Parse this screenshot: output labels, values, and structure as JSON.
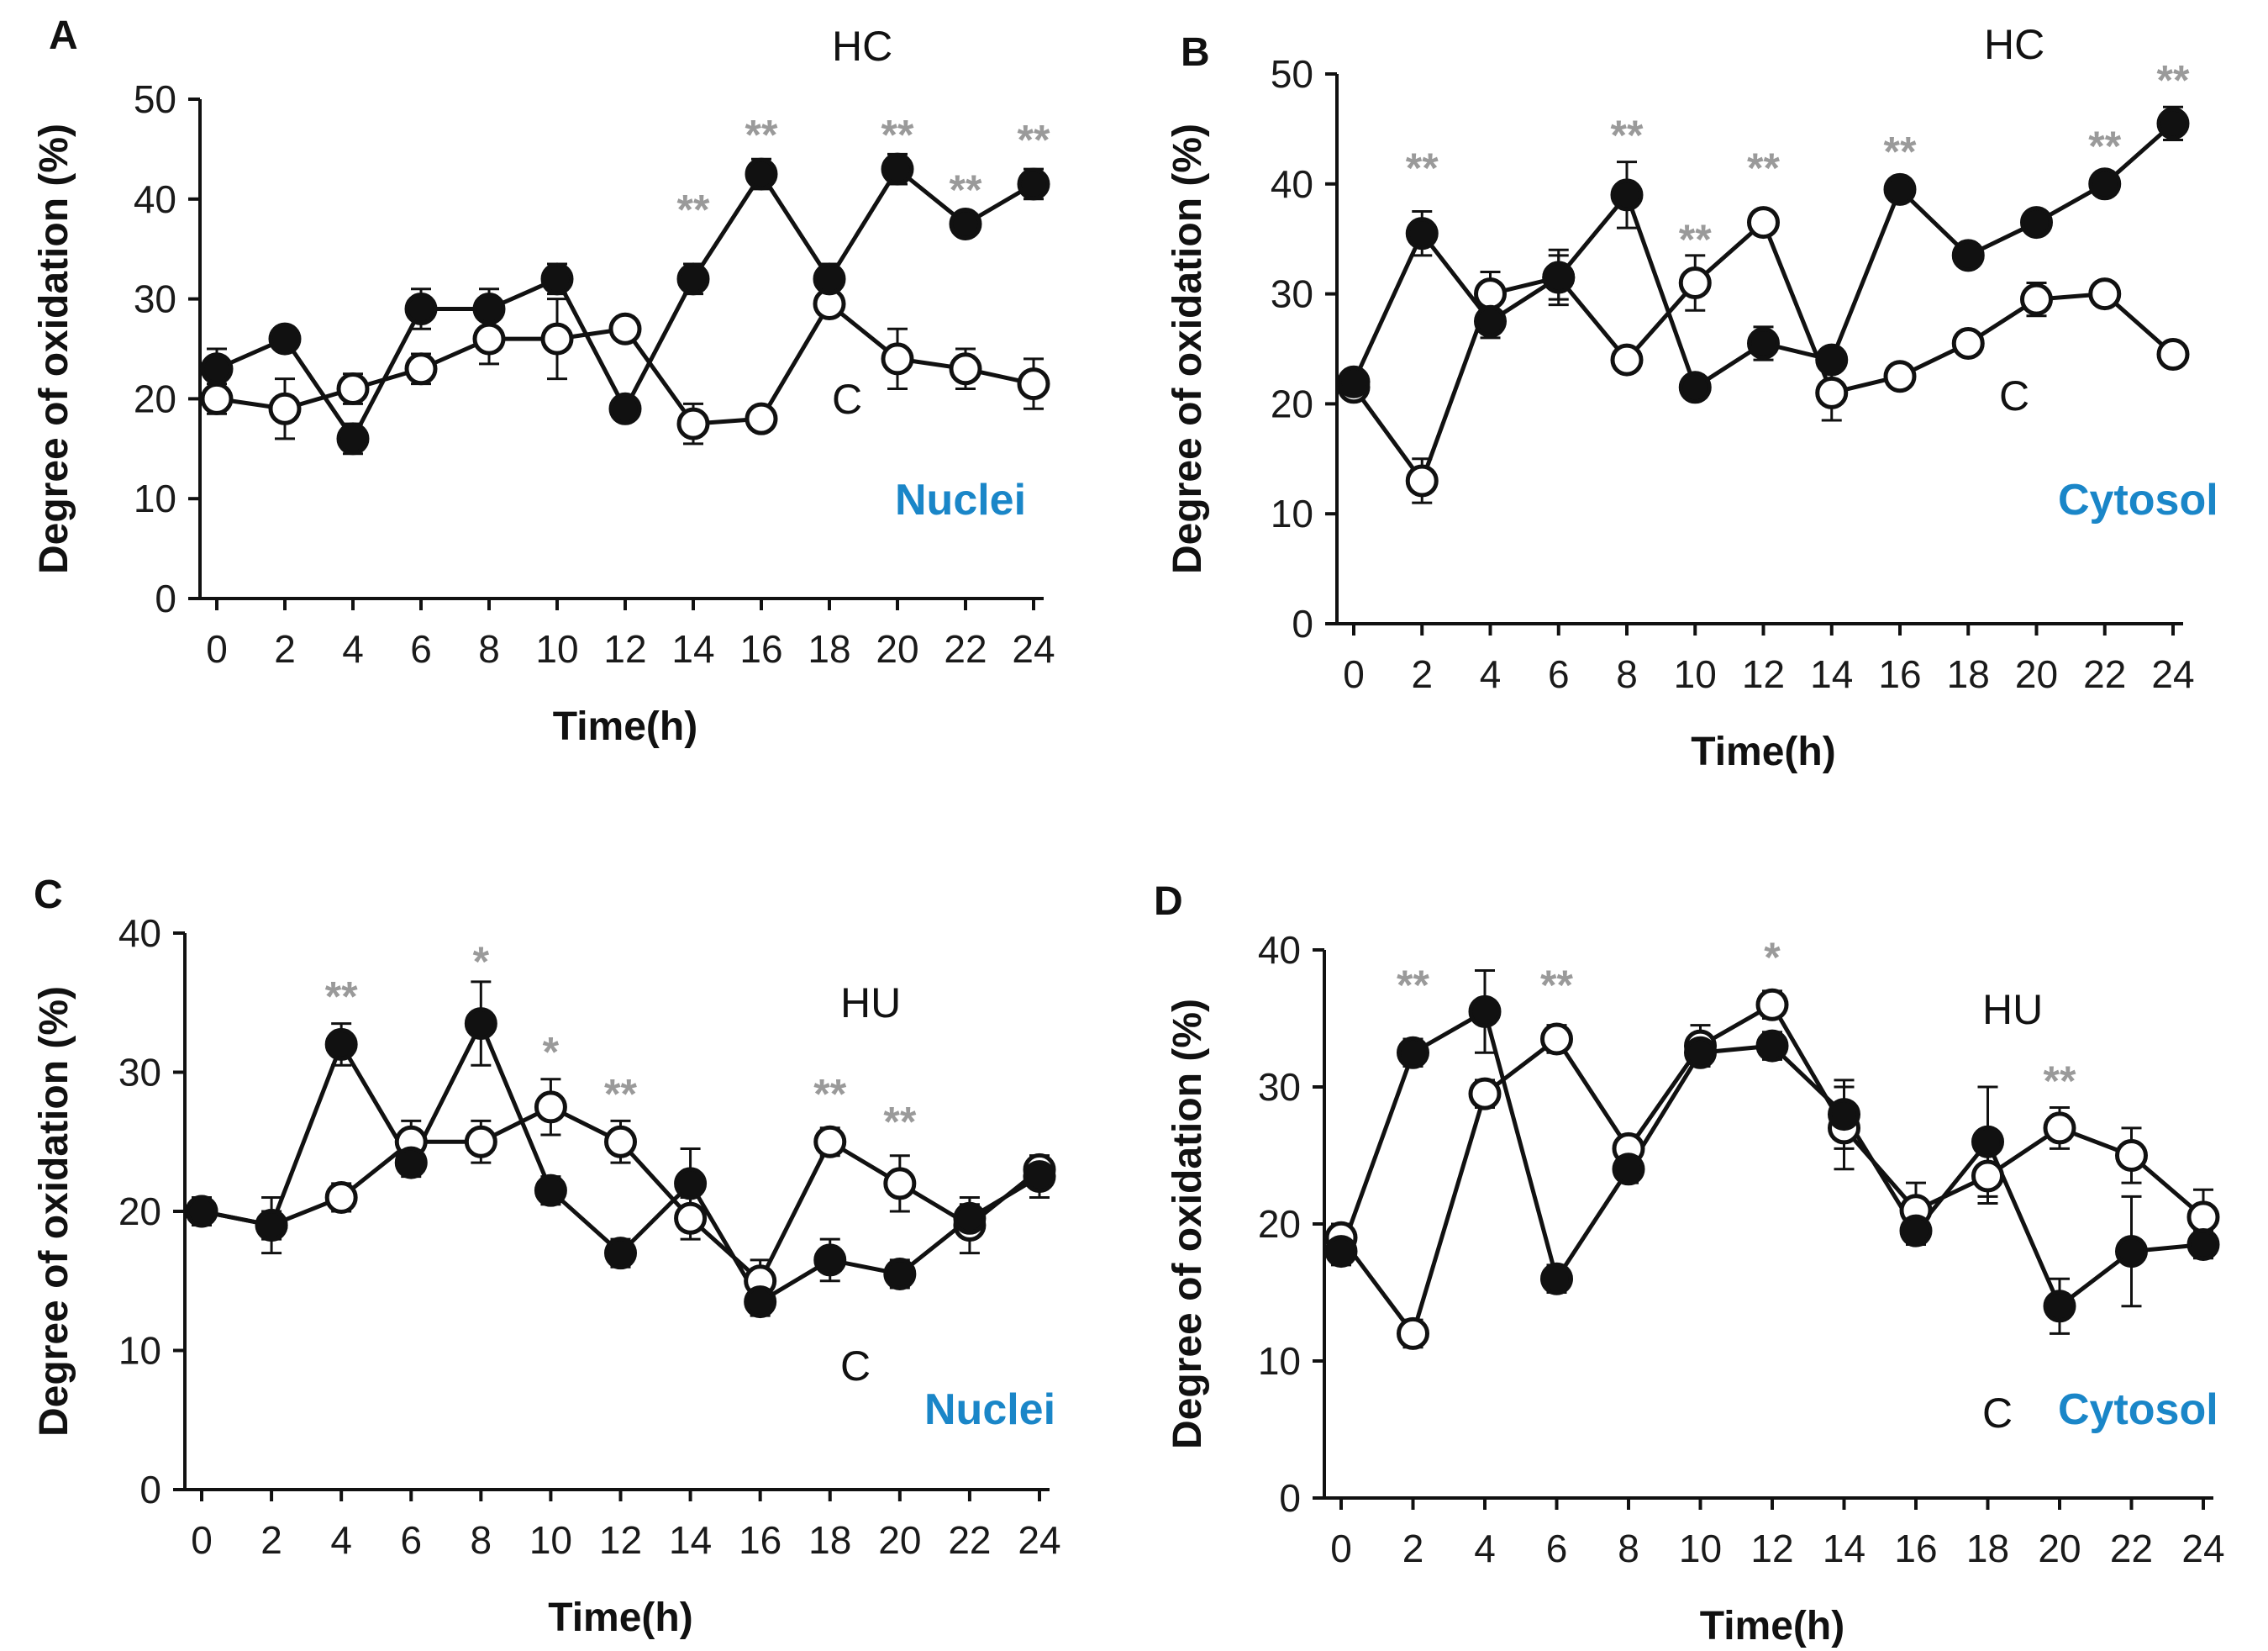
{
  "colors": {
    "axis": "#111111",
    "line": "#111111",
    "significance": "#9a9a9a",
    "region_label": "#1a86c8",
    "open_marker_fill": "#ffffff",
    "filled_marker": "#111111"
  },
  "chart_data": [
    {
      "panel": "A",
      "type": "line",
      "title": "Nuclei",
      "treatment": "HC",
      "control": "C",
      "xlabel": "Time(h)",
      "ylabel": "Degree of oxidation (%)",
      "x": [
        0,
        2,
        4,
        6,
        8,
        10,
        12,
        14,
        16,
        18,
        20,
        22,
        24
      ],
      "xticks": [
        "0",
        "2",
        "4",
        "6",
        "8",
        "10",
        "12",
        "14",
        "16",
        "18",
        "20",
        "22",
        "24"
      ],
      "ylim": [
        0,
        50
      ],
      "yticks": [
        "0",
        "10",
        "20",
        "30",
        "40",
        "50"
      ],
      "series": [
        {
          "name": "HC",
          "marker": "filled",
          "values": [
            23,
            26,
            16,
            29,
            29,
            32,
            19,
            32,
            42.5,
            32,
            43,
            37.5,
            41.5
          ],
          "errors": [
            2,
            1,
            1.5,
            2,
            2,
            1.5,
            1,
            1.5,
            1.5,
            1.5,
            1.5,
            1,
            1.5
          ]
        },
        {
          "name": "C",
          "marker": "open",
          "values": [
            20,
            19,
            21,
            23,
            26,
            26,
            27,
            17.5,
            18,
            29.5,
            24,
            23,
            21.5
          ],
          "errors": [
            1.5,
            3,
            1.5,
            1.5,
            2.5,
            4,
            1,
            2,
            0.5,
            1,
            3,
            2,
            2.5
          ]
        }
      ],
      "annotations": [
        {
          "x": 14,
          "y": 39,
          "text": "**"
        },
        {
          "x": 16,
          "y": 46.5,
          "text": "**"
        },
        {
          "x": 20,
          "y": 46.5,
          "text": "**"
        },
        {
          "x": 22,
          "y": 41,
          "text": "**"
        },
        {
          "x": 24,
          "y": 46,
          "text": "**"
        }
      ]
    },
    {
      "panel": "B",
      "type": "line",
      "title": "Cytosol",
      "treatment": "HC",
      "control": "C",
      "xlabel": "Time(h)",
      "ylabel": "Degree of oxidation (%)",
      "x": [
        0,
        2,
        4,
        6,
        8,
        10,
        12,
        14,
        16,
        18,
        20,
        22,
        24
      ],
      "xticks": [
        "0",
        "2",
        "4",
        "6",
        "8",
        "10",
        "12",
        "14",
        "16",
        "18",
        "20",
        "22",
        "24"
      ],
      "ylim": [
        0,
        50
      ],
      "yticks": [
        "0",
        "10",
        "20",
        "30",
        "40",
        "50"
      ],
      "series": [
        {
          "name": "HC",
          "marker": "filled",
          "values": [
            22,
            35.5,
            27.5,
            31.5,
            39,
            21.5,
            25.5,
            24,
            39.5,
            33.5,
            36.5,
            40,
            45.5
          ],
          "errors": [
            1,
            2,
            1.5,
            2,
            3,
            1,
            1.5,
            1,
            1,
            1,
            1,
            1,
            1.5
          ]
        },
        {
          "name": "C",
          "marker": "open",
          "values": [
            21.5,
            13,
            30,
            31.5,
            24,
            31,
            36.5,
            21,
            22.5,
            25.5,
            29.5,
            30,
            24.5
          ],
          "errors": [
            1,
            2,
            2,
            2.5,
            1,
            2.5,
            1,
            2.5,
            1,
            1,
            1.5,
            1,
            1
          ]
        }
      ],
      "annotations": [
        {
          "x": 2,
          "y": 41.5,
          "text": "**"
        },
        {
          "x": 8,
          "y": 44.5,
          "text": "**"
        },
        {
          "x": 10,
          "y": 35,
          "text": "**"
        },
        {
          "x": 12,
          "y": 41.5,
          "text": "**"
        },
        {
          "x": 16,
          "y": 43,
          "text": "**"
        },
        {
          "x": 22,
          "y": 43.5,
          "text": "**"
        },
        {
          "x": 24,
          "y": 49.5,
          "text": "**"
        }
      ]
    },
    {
      "panel": "C",
      "type": "line",
      "title": "Nuclei",
      "treatment": "HU",
      "control": "C",
      "xlabel": "Time(h)",
      "ylabel": "Degree of oxidation (%)",
      "x": [
        0,
        2,
        4,
        6,
        8,
        10,
        12,
        14,
        16,
        18,
        20,
        22,
        24
      ],
      "xticks": [
        "0",
        "2",
        "4",
        "6",
        "8",
        "10",
        "12",
        "14",
        "16",
        "18",
        "20",
        "22",
        "24"
      ],
      "ylim": [
        0,
        40
      ],
      "yticks": [
        "0",
        "10",
        "20",
        "30",
        "40"
      ],
      "series": [
        {
          "name": "HU",
          "marker": "filled",
          "values": [
            20,
            19,
            32,
            23.5,
            33.5,
            21.5,
            17,
            22,
            13.5,
            16.5,
            15.5,
            19.5,
            22.5
          ],
          "errors": [
            1,
            2,
            1.5,
            1,
            3,
            1,
            1,
            2.5,
            1,
            1.5,
            1,
            1,
            1.5
          ]
        },
        {
          "name": "C",
          "marker": "open",
          "values": [
            20,
            19,
            21,
            25,
            25,
            27.5,
            25,
            19.5,
            15,
            25,
            22,
            19,
            23
          ],
          "errors": [
            1,
            1,
            1,
            1.5,
            1.5,
            2,
            1.5,
            1.5,
            1.5,
            1,
            2,
            2,
            1
          ]
        }
      ],
      "annotations": [
        {
          "x": 4,
          "y": 35.5,
          "text": "**"
        },
        {
          "x": 8,
          "y": 38,
          "text": "*"
        },
        {
          "x": 10,
          "y": 31.5,
          "text": "*"
        },
        {
          "x": 12,
          "y": 28.5,
          "text": "**"
        },
        {
          "x": 18,
          "y": 28.5,
          "text": "**"
        },
        {
          "x": 20,
          "y": 26.5,
          "text": "**"
        }
      ]
    },
    {
      "panel": "D",
      "type": "line",
      "title": "Cytosol",
      "treatment": "HU",
      "control": "C",
      "xlabel": "Time(h)",
      "ylabel": "Degree of oxidation (%)",
      "x": [
        0,
        2,
        4,
        6,
        8,
        10,
        12,
        14,
        16,
        18,
        20,
        22,
        24
      ],
      "xticks": [
        "0",
        "2",
        "4",
        "6",
        "8",
        "10",
        "12",
        "14",
        "16",
        "18",
        "20",
        "22",
        "24"
      ],
      "ylim": [
        0,
        40
      ],
      "yticks": [
        "0",
        "10",
        "20",
        "30",
        "40"
      ],
      "series": [
        {
          "name": "HU",
          "marker": "filled",
          "values": [
            18,
            32.5,
            35.5,
            16,
            24,
            32.5,
            33,
            28,
            19.5,
            26,
            14,
            18,
            18.5
          ],
          "errors": [
            1,
            1,
            3,
            1,
            1,
            1,
            1,
            2.5,
            1,
            4,
            2,
            4,
            1
          ]
        },
        {
          "name": "C",
          "marker": "open",
          "values": [
            19,
            12,
            29.5,
            33.5,
            25.5,
            33,
            36,
            27,
            21,
            23.5,
            27,
            25,
            20.5
          ],
          "errors": [
            1,
            1,
            1,
            1,
            1,
            1.5,
            1,
            3,
            2,
            2,
            1.5,
            2,
            2
          ]
        }
      ],
      "annotations": [
        {
          "x": 2,
          "y": 37.5,
          "text": "**"
        },
        {
          "x": 6,
          "y": 37.5,
          "text": "**"
        },
        {
          "x": 12,
          "y": 39.5,
          "text": "*"
        },
        {
          "x": 20,
          "y": 30.5,
          "text": "**"
        }
      ]
    }
  ]
}
